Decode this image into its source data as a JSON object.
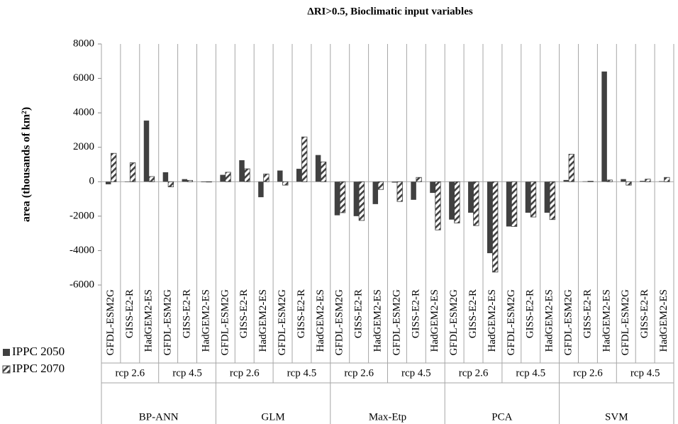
{
  "chart_data": {
    "type": "bar",
    "title": "ΔRI>0.5, Bioclimatic input variables",
    "y_label": "area (thousands of km²)",
    "categories": [
      "GFDL-ESM2G",
      "GISS-E2-R",
      "HadGEM2-ES",
      "GFDL-ESM2G",
      "GISS-E2-R",
      "HadGEM2-ES",
      "GFDL-ESM2G",
      "GISS-E2-R",
      "HadGEM2-ES",
      "GFDL-ESM2G",
      "GISS-E2-R",
      "HadGEM2-ES",
      "GFDL-ESM2G",
      "GISS-E2-R",
      "HadGEM2-ES",
      "GFDL-ESM2G",
      "GISS-E2-R",
      "HadGEM2-ES",
      "GFDL-ESM2G",
      "GISS-E2-R",
      "HadGEM2-ES",
      "GFDL-ESM2G",
      "GISS-E2-R",
      "HadGEM2-ES",
      "GFDL-ESM2G",
      "GISS-E2-R",
      "HadGEM2-ES",
      "GFDL-ESM2G",
      "GISS-E2-R",
      "HadGEM2-ES"
    ],
    "subgroups": [
      "rcp 2.6",
      "rcp 4.5",
      "rcp 2.6",
      "rcp 4.5",
      "rcp 2.6",
      "rcp 4.5",
      "rcp 2.6",
      "rcp 4.5",
      "rcp 2.6",
      "rcp 4.5"
    ],
    "groups": [
      "BP-ANN",
      "GLM",
      "Max-Etp",
      "PCA",
      "SVM"
    ],
    "series": [
      {
        "name": "IPPC 2050",
        "color": "#404040",
        "hatch": false,
        "values": [
          -150,
          -20,
          3550,
          550,
          150,
          -30,
          400,
          1250,
          -900,
          650,
          750,
          1550,
          -1950,
          -2000,
          -1300,
          -50,
          -1050,
          -650,
          -2200,
          -1800,
          -4150,
          -2600,
          -1800,
          -1800,
          100,
          20,
          6400,
          150,
          50,
          30
        ]
      },
      {
        "name": "IPPC 2070",
        "color": "#404040",
        "hatch": true,
        "values": [
          1650,
          1100,
          300,
          -300,
          80,
          -20,
          550,
          750,
          450,
          -200,
          2600,
          1150,
          -1800,
          -2250,
          -450,
          -1150,
          250,
          -2800,
          -2400,
          -2550,
          -5250,
          -2600,
          -2050,
          -2200,
          1600,
          30,
          100,
          -200,
          150,
          250
        ]
      }
    ],
    "ylim": [
      -6000,
      8000
    ],
    "yticks": [
      -6000,
      -4000,
      -2000,
      0,
      2000,
      4000,
      6000,
      8000
    ],
    "legend": "bottom-left"
  }
}
